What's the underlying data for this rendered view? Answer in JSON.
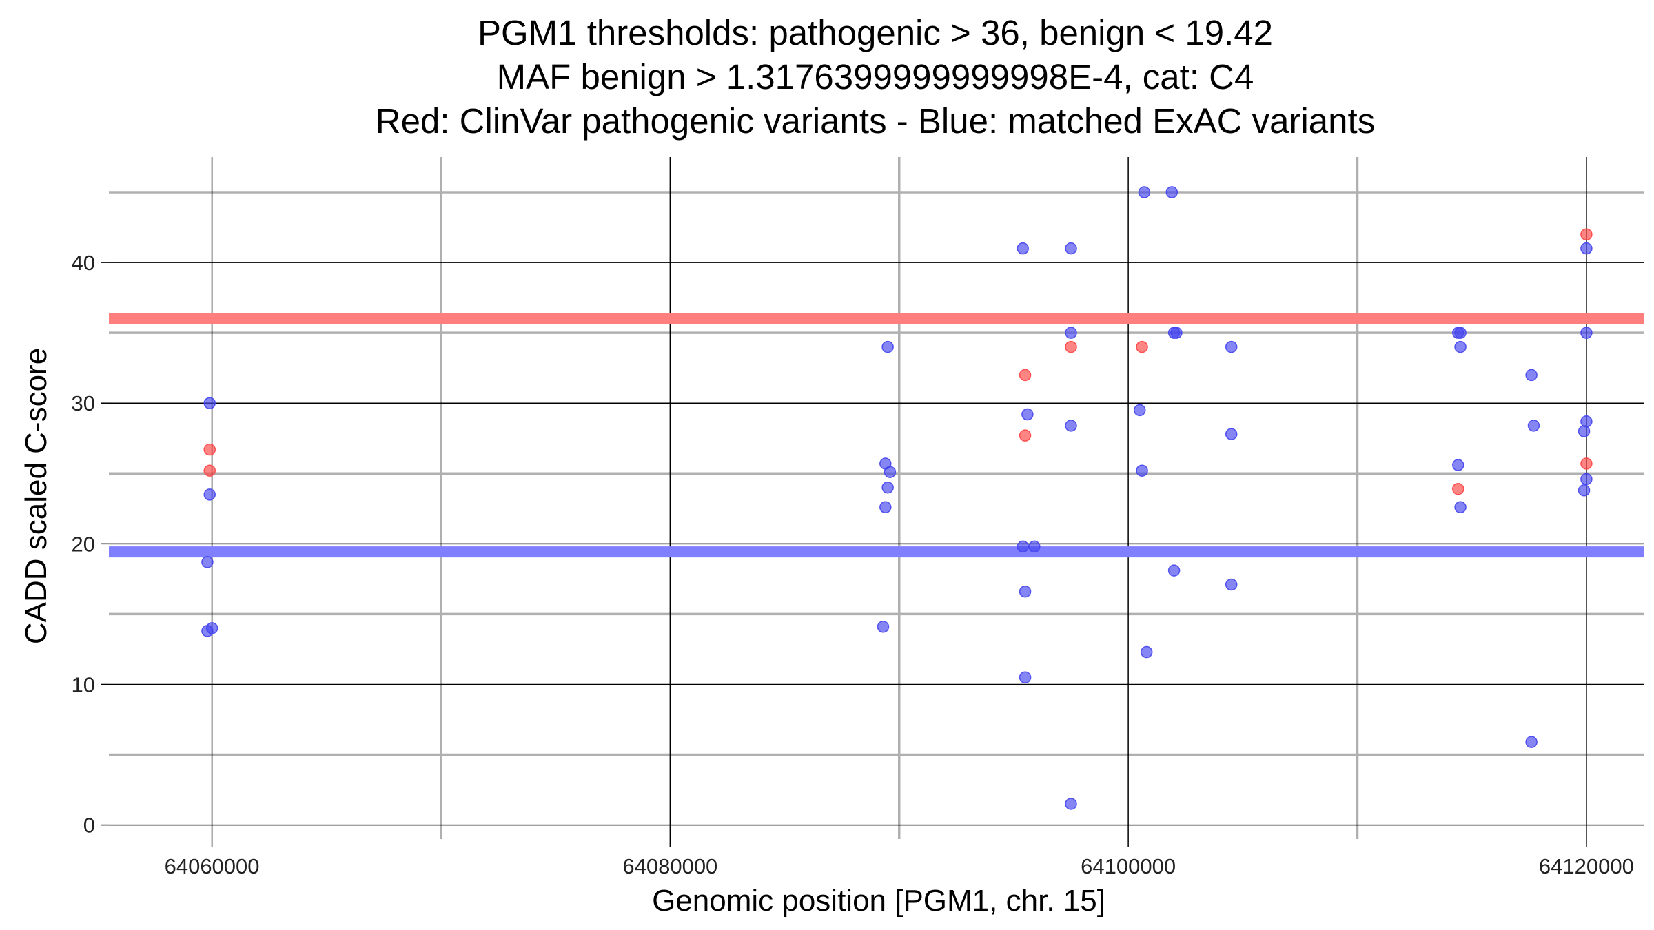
{
  "chart_data": {
    "type": "scatter",
    "title_lines": [
      "PGM1 thresholds: pathogenic > 36, benign < 19.42",
      "MAF benign > 1.3176399999999998E-4, cat: C4",
      "Red: ClinVar pathogenic variants - Blue: matched ExAC variants"
    ],
    "xlabel": "Genomic position [PGM1, chr. 15]",
    "ylabel": "CADD scaled C-score",
    "xlim": [
      64055500,
      64122500
    ],
    "ylim": [
      -1,
      47.5
    ],
    "x_ticks": [
      64060000,
      64080000,
      64100000,
      64120000
    ],
    "x_tick_labels": [
      "64060000",
      "64080000",
      "64100000",
      "64120000"
    ],
    "x_minor_ticks": [
      64070000,
      64090000,
      64110000
    ],
    "y_ticks": [
      0,
      10,
      20,
      30,
      40
    ],
    "y_tick_labels": [
      "0",
      "10",
      "20",
      "30",
      "40"
    ],
    "y_minor_ticks": [
      5,
      15,
      25,
      35,
      45
    ],
    "thresholds": [
      {
        "name": "pathogenic",
        "value": 36,
        "color": "#ff7f7f"
      },
      {
        "name": "benign",
        "value": 19.42,
        "color": "#7f7fff"
      }
    ],
    "series": [
      {
        "name": "ClinVar pathogenic",
        "color": "#ff4444",
        "x": [
          64059900,
          64059900,
          64095500,
          64095500,
          64097500,
          64100600,
          64114400,
          64120000,
          64120000
        ],
        "y": [
          26.7,
          25.2,
          32,
          27.7,
          34,
          34,
          23.9,
          42,
          25.7
        ]
      },
      {
        "name": "matched ExAC",
        "color": "#4444ee",
        "x": [
          64059900,
          64059900,
          64059800,
          64059800,
          64060000,
          64089500,
          64089400,
          64089600,
          64089500,
          64089400,
          64089300,
          64095400,
          64095600,
          64095500,
          64095500,
          64095900,
          64095400,
          64097500,
          64097500,
          64097500,
          64097500,
          64100700,
          64101900,
          64100500,
          64100600,
          64102000,
          64100800,
          64102000,
          64102100,
          64104500,
          64104500,
          64104500,
          64114400,
          64114500,
          64114500,
          64114400,
          64114500,
          64117600,
          64117700,
          64117600,
          64120000,
          64120000,
          64120000,
          64119900,
          64120000,
          64119900
        ],
        "y": [
          30,
          23.5,
          18.7,
          13.8,
          14,
          34,
          25.7,
          25.1,
          24,
          22.6,
          14.1,
          41,
          29.2,
          16.6,
          10.5,
          19.8,
          19.8,
          41,
          35,
          28.4,
          1.5,
          45,
          45,
          29.5,
          25.2,
          35,
          12.3,
          18.1,
          35,
          34,
          27.8,
          17.1,
          35,
          35,
          34,
          25.6,
          22.6,
          32,
          28.4,
          5.9,
          41,
          35,
          28.7,
          28,
          24.6,
          23.8
        ]
      }
    ]
  }
}
